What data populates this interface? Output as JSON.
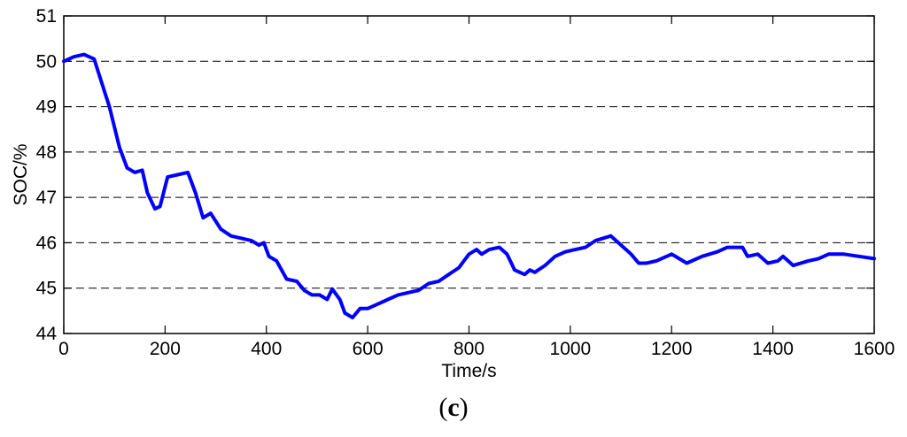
{
  "chart_data": {
    "type": "line",
    "xlabel": "Time/s",
    "ylabel": "SOC/%",
    "xlim": [
      0,
      1600
    ],
    "ylim": [
      44,
      51
    ],
    "xticks": [
      0,
      200,
      400,
      600,
      800,
      1000,
      1200,
      1400,
      1600
    ],
    "yticks": [
      44,
      45,
      46,
      47,
      48,
      49,
      50,
      51
    ],
    "grid": "horizontal-dashed",
    "line_color": "#0000ff",
    "series": [
      {
        "x": [
          0,
          20,
          40,
          60,
          70,
          90,
          110,
          125,
          140,
          155,
          165,
          180,
          190,
          205,
          225,
          245,
          260,
          275,
          290,
          310,
          330,
          350,
          370,
          385,
          395,
          405,
          420,
          440,
          460,
          475,
          490,
          505,
          520,
          530,
          545,
          555,
          570,
          585,
          600,
          620,
          640,
          660,
          680,
          700,
          720,
          740,
          760,
          780,
          800,
          815,
          825,
          840,
          860,
          875,
          890,
          910,
          920,
          930,
          950,
          970,
          990,
          1010,
          1030,
          1050,
          1080,
          1100,
          1120,
          1135,
          1150,
          1170,
          1200,
          1230,
          1260,
          1290,
          1310,
          1340,
          1350,
          1370,
          1390,
          1410,
          1420,
          1440,
          1470,
          1490,
          1510,
          1540,
          1570,
          1600
        ],
        "values": [
          50.0,
          50.1,
          50.15,
          50.05,
          49.7,
          49.0,
          48.1,
          47.65,
          47.55,
          47.6,
          47.1,
          46.75,
          46.8,
          47.45,
          47.5,
          47.55,
          47.1,
          46.55,
          46.65,
          46.3,
          46.15,
          46.1,
          46.05,
          45.95,
          46.0,
          45.7,
          45.6,
          45.2,
          45.15,
          44.95,
          44.85,
          44.85,
          44.75,
          44.98,
          44.75,
          44.45,
          44.35,
          44.55,
          44.55,
          44.65,
          44.75,
          44.85,
          44.9,
          44.95,
          45.1,
          45.15,
          45.3,
          45.45,
          45.75,
          45.85,
          45.75,
          45.85,
          45.9,
          45.75,
          45.4,
          45.3,
          45.4,
          45.35,
          45.5,
          45.7,
          45.8,
          45.85,
          45.9,
          46.05,
          46.15,
          45.95,
          45.75,
          45.55,
          45.55,
          45.6,
          45.75,
          45.55,
          45.7,
          45.8,
          45.9,
          45.9,
          45.7,
          45.75,
          45.55,
          45.6,
          45.7,
          45.5,
          45.6,
          45.65,
          45.75,
          45.75,
          45.7,
          45.65
        ]
      }
    ]
  },
  "caption": {
    "open": "(",
    "letter": "c",
    "close": ")"
  }
}
